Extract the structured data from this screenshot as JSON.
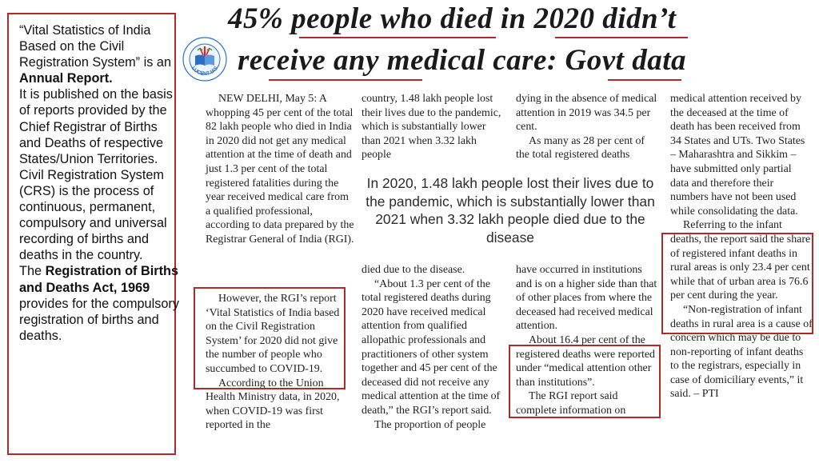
{
  "sidebar": {
    "p1_a": "“Vital Statistics of India Based on the Civil Registration System” is an ",
    "p1_bold": "Annual Report.",
    "p2": "It is published on the basis of reports provided by the Chief Registrar of Births and Deaths of respective States/Union Territories.",
    "p3": "Civil Registration System (CRS) is the process of continuous, permanent, compulsory and universal recording of births and deaths in the country.",
    "p4_a": "The ",
    "p4_bold": "Registration of Births and Deaths Act, 1969",
    "p4_b": " provides for the compulsory registration of births and deaths."
  },
  "logo": {
    "text": "LUCENT IAS",
    "icon": "open-book-icon",
    "colors": {
      "book": "#2a6fc0",
      "accent": "#d7262b",
      "leaf": "#3a9a3a"
    }
  },
  "headline": {
    "line1": "45% people who died in 2020 didn’t",
    "line2": "receive any medical care: Govt data"
  },
  "article": {
    "col1": [
      "NEW DELHI, May 5: A whopping 45 per cent of the total 82 lakh people who died in India in 2020 did not get any medical attention at the time of death and just 1.3 per cent of the total registered fatalities during the year received medical care from a qualified professional, according to data prepared by the Registrar General of India (RGI)."
    ],
    "col1b": [
      "However, the RGI’s report ‘Vital Statistics of India based on the Civil Registration System’ for 2020 did not give the number of people who succumbed to COVID-19.",
      "According to the Union Health Ministry data, in 2020, when COVID-19 was first reported in the"
    ],
    "col2": [
      "country, 1.48 lakh people lost their lives due to the pandemic, which is substantially lower than 2021 when 3.32 lakh people"
    ],
    "col2b": [
      "died due to the disease.",
      "“About 1.3 per cent of the total registered deaths during 2020 have received medical attention from qualified allopathic professionals and practitioners of other system together and 45 per cent of the deceased did not receive any medical attention at the time of death,” the RGI’s report said.",
      "The proportion of people"
    ],
    "col3": [
      "dying in the absence of medical attention in 2019 was 34.5 per cent.",
      "As many as 28 per cent of the total registered deaths"
    ],
    "col3b": [
      "have occurred in institutions and is on a higher side than that of other places from where the deceased had received medical attention.",
      "About 16.4 per cent of the registered deaths were reported under “medical attention other than institutions”.",
      "The RGI report said complete information on"
    ],
    "col4": [
      "medical attention received by the deceased at the time of death has been received from 34 States and UTs. Two States – Maharashtra and Sikkim – have submitted only partial data and therefore their numbers have not been used while consolidating the data.",
      "Referring to the infant deaths, the report said the share of registered infant deaths in rural areas is only 23.4 per cent while that of urban area is 76.6 per cent during the year.",
      "“Non-registration of infant deaths in rural area is a cause of concern which may be due to non-reporting of infant deaths to the registrars, especially in case of domiciliary events,” it said. – PTI"
    ]
  },
  "pull_quote": "In 2020, 1.48 lakh people lost their lives due to the pandemic, which is substantially lower than 2021 when 3.32 lakh people died due to the disease",
  "colors": {
    "highlight_border": "#b02a2a",
    "text": "#222222"
  }
}
